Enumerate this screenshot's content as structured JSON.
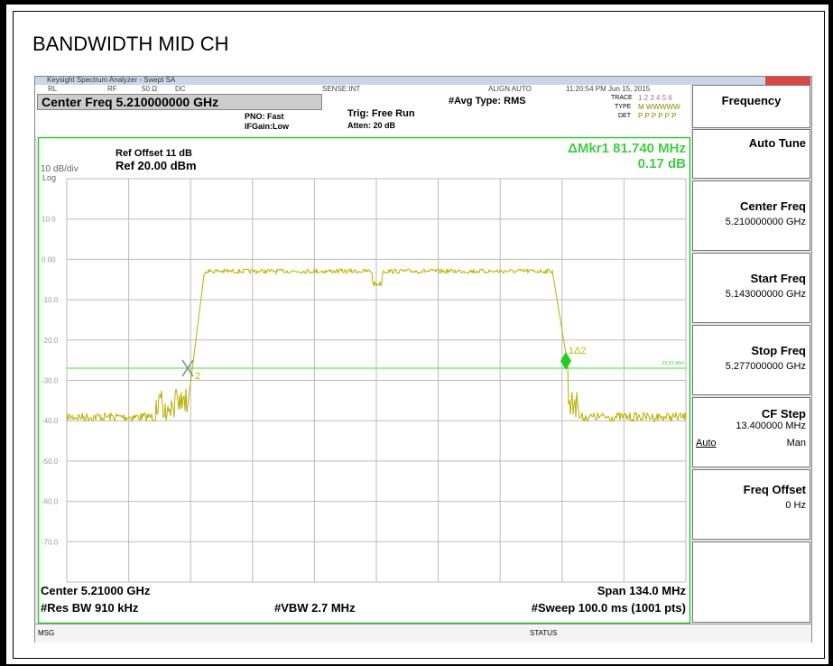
{
  "page_title": "BANDWIDTH MID CH",
  "window_title": "Keysight Spectrum Analyzer - Swept SA",
  "status_bar": {
    "items": [
      "RL",
      "RF",
      "50 Ω",
      "DC",
      "SENSE:INT",
      "ALIGN AUTO"
    ],
    "timestamp": "11:20:54 PM Jun 15, 2015"
  },
  "settings": {
    "center_freq": "Center Freq 5.210000000 GHz",
    "pno": "PNO: Fast",
    "ifgain": "IFGain:Low",
    "trig": "Trig: Free Run",
    "atten": "Atten: 20 dB",
    "avg_type": "#Avg Type: RMS"
  },
  "trace_info": {
    "trace_label": "TRACE",
    "trace_value": "1 2 3 4 5 6",
    "type_label": "TYPE",
    "type_value": "M WWWWW",
    "det_label": "DET",
    "det_value": "P P P P P P"
  },
  "plot": {
    "ref_offset": "Ref Offset 11 dB",
    "ref_level": "Ref 20.00 dBm",
    "scale": "10 dB/div",
    "scale_type": "Log",
    "marker_readout": "ΔMkr1 81.740 MHz",
    "marker_delta": "0.17 dB",
    "y_labels": [
      "10.0",
      "0.00",
      "-10.0",
      "-20.0",
      "-30.0",
      "-40.0",
      "-50.0",
      "-60.0",
      "-70.0"
    ],
    "marker1_label": "1Δ2",
    "marker2_label": "2",
    "threshold_label": "-26.83 dBm"
  },
  "footer": {
    "center": "Center 5.21000 GHz",
    "span": "Span 134.0 MHz",
    "rbw": "#Res BW 910 kHz",
    "vbw": "#VBW 2.7 MHz",
    "sweep": "#Sweep  100.0 ms (1001 pts)"
  },
  "message_bar": {
    "msg": "MSG",
    "status": "STATUS"
  },
  "softkeys": {
    "menu": "Frequency",
    "auto_tune": "Auto Tune",
    "center_freq": {
      "label": "Center Freq",
      "value": "5.210000000 GHz"
    },
    "start_freq": {
      "label": "Start Freq",
      "value": "5.143000000 GHz"
    },
    "stop_freq": {
      "label": "Stop Freq",
      "value": "5.277000000 GHz"
    },
    "cf_step": {
      "label": "CF Step",
      "value": "13.400000 MHz",
      "auto": "Auto",
      "man": "Man"
    },
    "freq_offset": {
      "label": "Freq Offset",
      "value": "0 Hz"
    }
  }
}
